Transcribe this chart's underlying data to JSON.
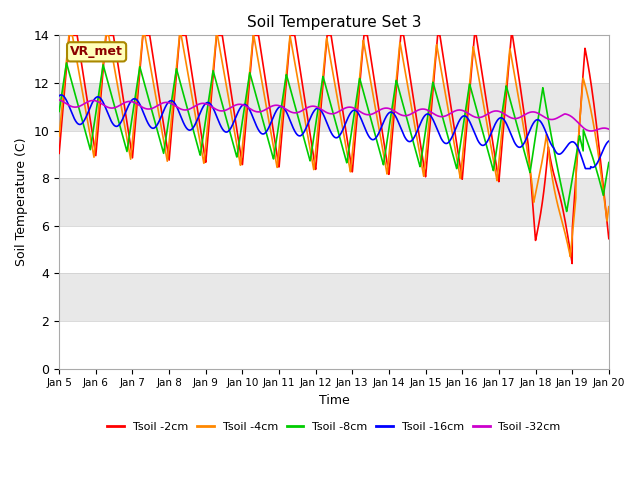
{
  "title": "Soil Temperature Set 3",
  "xlabel": "Time",
  "ylabel": "Soil Temperature (C)",
  "ylim": [
    0,
    14
  ],
  "xlim": [
    0,
    15
  ],
  "x_tick_labels": [
    "Jan 5",
    "Jan 6",
    "Jan 7",
    "Jan 8",
    "Jan 9",
    "Jan 10",
    "Jan 11",
    "Jan 12",
    "Jan 13",
    "Jan 14",
    "Jan 15",
    "Jan 16",
    "Jan 17",
    "Jan 18",
    "Jan 19",
    "Jan 20"
  ],
  "annotation": "VR_met",
  "colors": {
    "2cm": "#ff0000",
    "4cm": "#ff8800",
    "8cm": "#00cc00",
    "16cm": "#0000ff",
    "32cm": "#cc00cc"
  },
  "legend_labels": [
    "Tsoil -2cm",
    "Tsoil -4cm",
    "Tsoil -8cm",
    "Tsoil -16cm",
    "Tsoil -32cm"
  ],
  "bg_bands": [
    [
      0,
      2,
      "#ffffff"
    ],
    [
      2,
      4,
      "#e8e8e8"
    ],
    [
      4,
      6,
      "#ffffff"
    ],
    [
      6,
      8,
      "#e8e8e8"
    ],
    [
      8,
      10,
      "#ffffff"
    ],
    [
      10,
      12,
      "#e8e8e8"
    ],
    [
      12,
      14,
      "#ffffff"
    ]
  ],
  "line_width": 1.2
}
